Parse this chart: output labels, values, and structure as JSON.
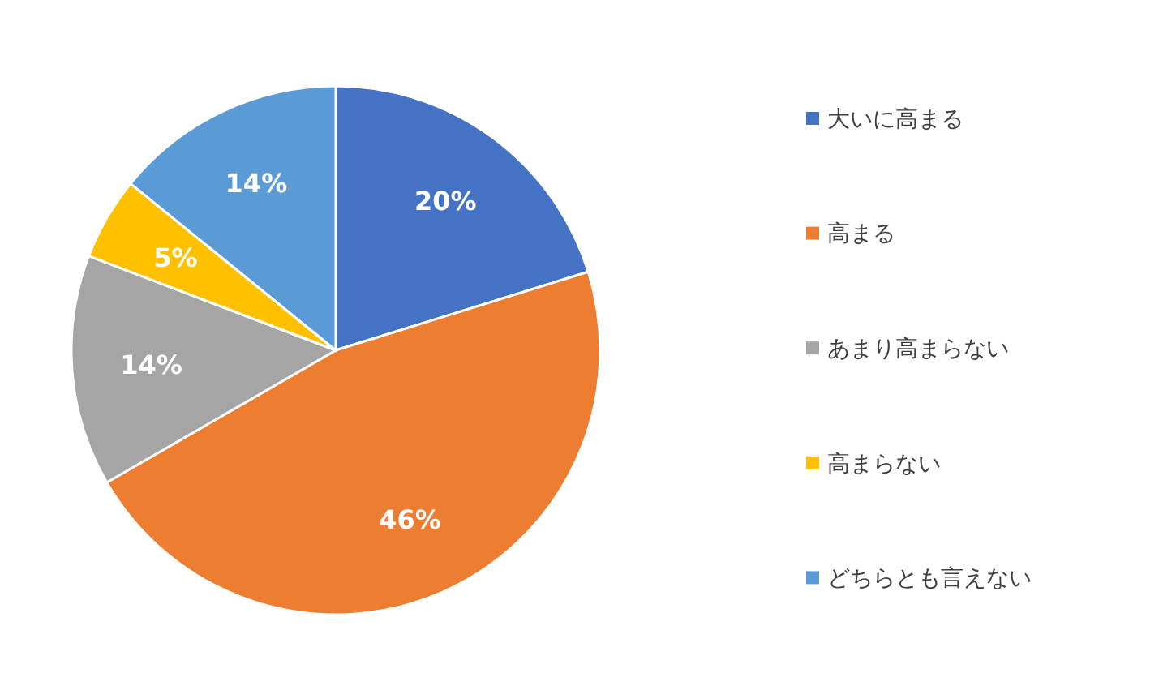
{
  "chart_data": {
    "type": "pie",
    "categories": [
      "大いに高まる",
      "高まる",
      "あまり高まらない",
      "高まらない",
      "どちらとも言えない"
    ],
    "values": [
      20,
      46,
      14,
      5,
      14
    ],
    "colors": [
      "#4472c4",
      "#ed7d31",
      "#a5a5a5",
      "#ffc000",
      "#5b9bd5"
    ],
    "value_labels": [
      "20%",
      "46%",
      "14%",
      "5%",
      "14%"
    ],
    "legend": "right"
  }
}
